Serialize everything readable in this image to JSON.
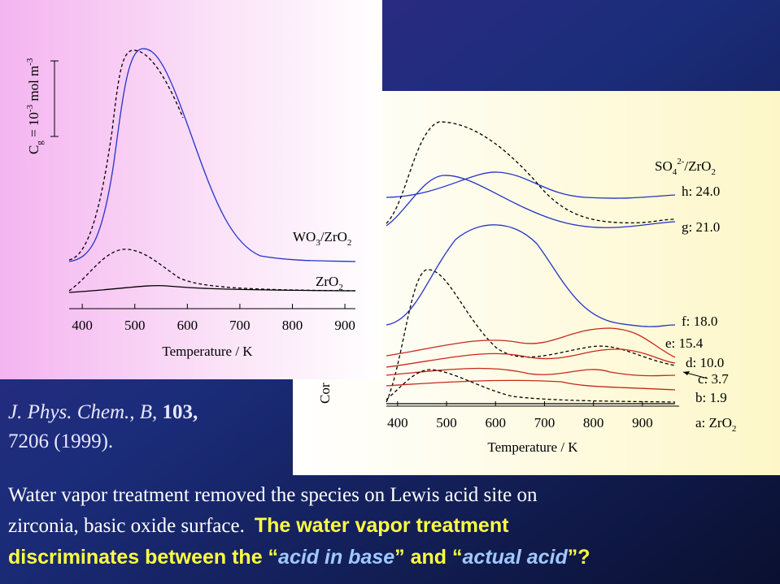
{
  "slide": {
    "left_chart": {
      "y_label": [
        "C",
        "g",
        " = 10",
        "-3",
        " mol m",
        "-3"
      ],
      "x_label": "Temperature / K",
      "xlim": [
        375,
        920
      ],
      "xticks": [
        400,
        500,
        600,
        700,
        800,
        900
      ],
      "curve_labels": [
        [
          "WO",
          "3",
          "/ZrO",
          "2"
        ],
        [
          "ZrO",
          "2"
        ]
      ]
    },
    "right_chart": {
      "y_label": "Cor",
      "x_label": "Temperature / K",
      "xlim": [
        377,
        975
      ],
      "xticks": [
        400,
        500,
        600,
        700,
        800,
        900
      ],
      "legend_title": [
        "SO",
        "4",
        "2-",
        "/ZrO",
        "2"
      ],
      "curve_labels": [
        "h: 24.0",
        "g: 21.0",
        "f: 18.0",
        "e: 15.4",
        "d: 10.0",
        "c: 3.7",
        "b: 1.9",
        [
          "a: ZrO",
          "2"
        ]
      ]
    },
    "citation": [
      "J. Phys. Chem., B, ",
      "103,",
      "7206 (1999)."
    ],
    "body": {
      "line1": "Water vapor treatment removed the species on Lewis acid site on",
      "line2": "zirconia, basic oxide surface.",
      "highlight1": "The water vapor treatment",
      "highlight2": [
        "discriminates between the “",
        "acid in base",
        "” and “",
        "actual acid",
        "”?"
      ]
    }
  }
}
